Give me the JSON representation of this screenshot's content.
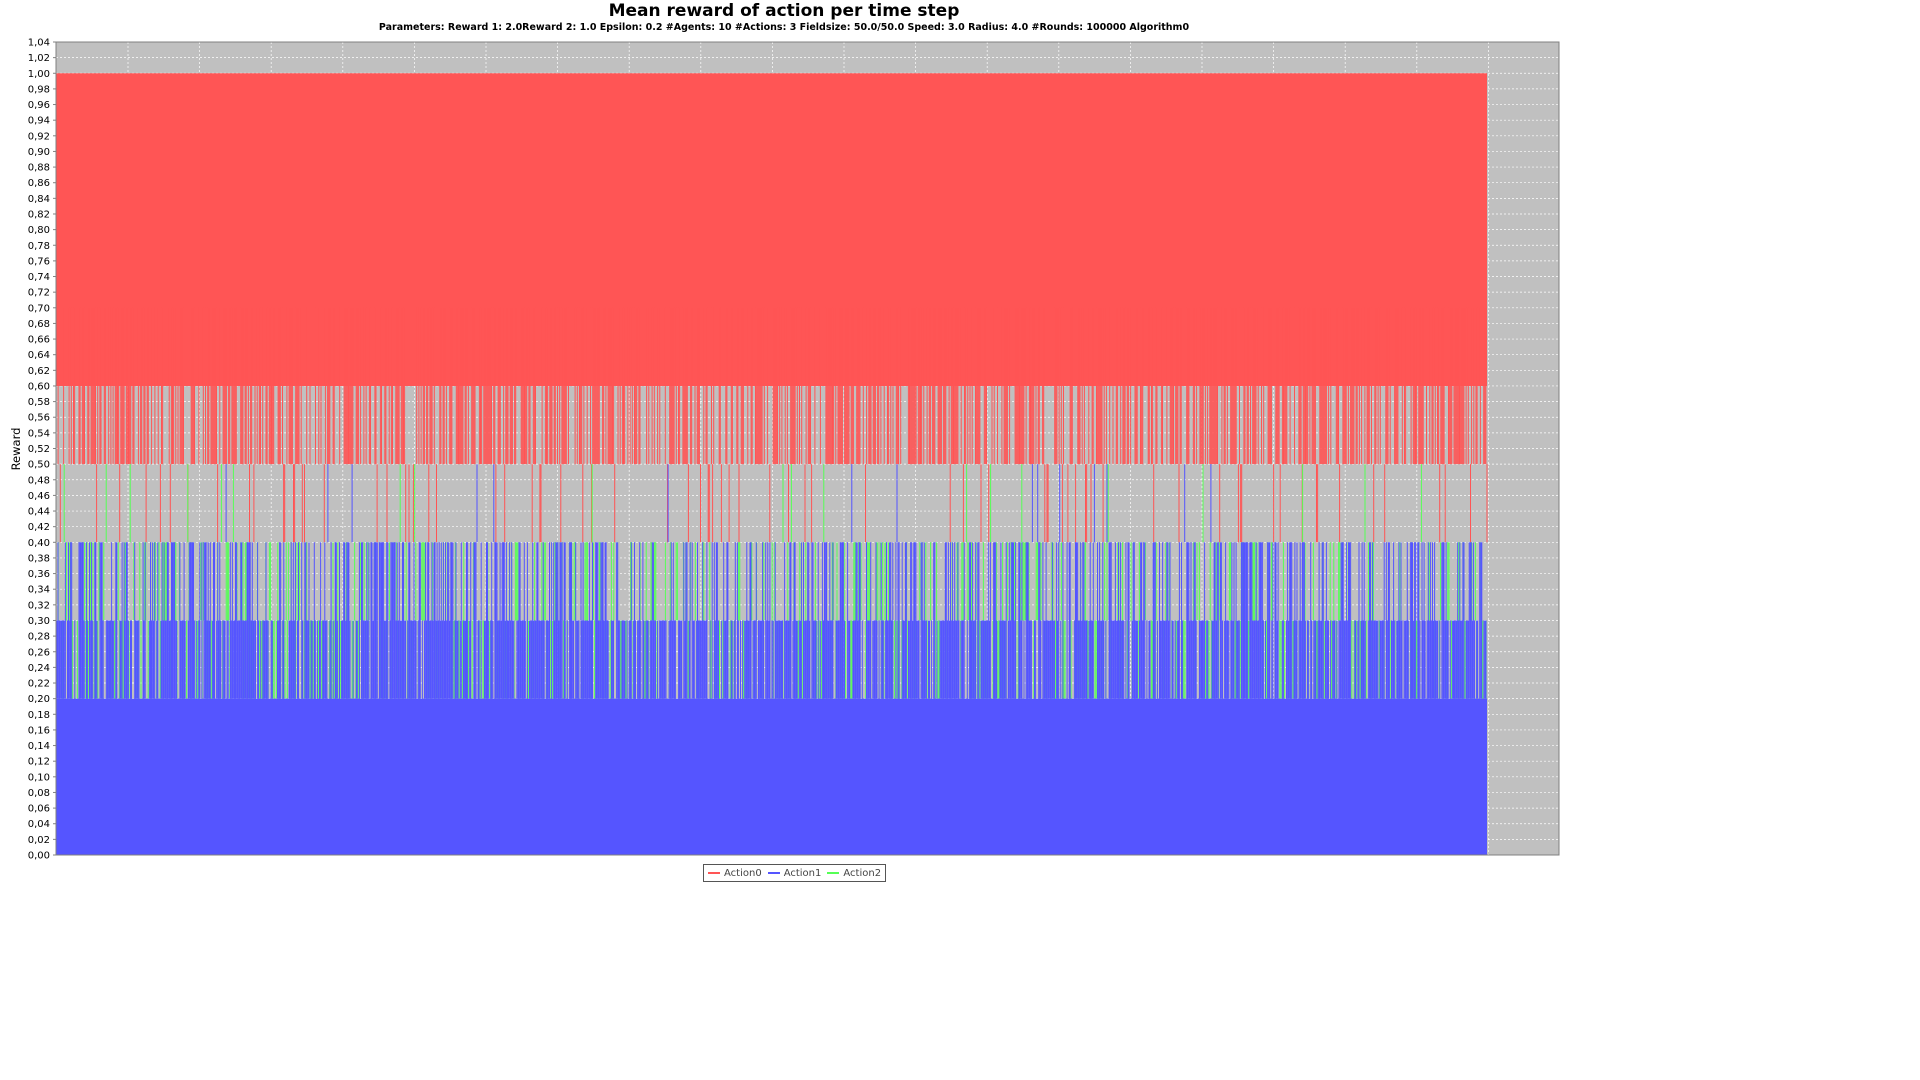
{
  "chart_data": {
    "type": "line",
    "title": "Mean reward of action per time step",
    "subtitle": "Parameters: Reward 1: 2.0Reward 2: 1.0 Epsilon: 0.2 #Agents: 10 #Actions: 3 Fieldsize: 50.0/50.0 Speed: 3.0 Radius: 4.0 #Rounds: 100000 Algorithm0",
    "xlabel": "",
    "ylabel": "Reward",
    "ylim": [
      0,
      1.04
    ],
    "y_tick_step": 0.02,
    "grid": true,
    "x_tick_labels_visible": false,
    "legend_position": "bottom-center",
    "series": [
      {
        "name": "Action0",
        "color": "#ff5555",
        "typical_range": [
          0.6,
          1.0
        ],
        "dips_to": [
          0.5,
          0.4
        ],
        "peaks_to": 0.7
      },
      {
        "name": "Action1",
        "color": "#5555ff",
        "typical_range": [
          0.0,
          0.2
        ],
        "peaks_to": [
          0.3,
          0.4,
          0.5
        ]
      },
      {
        "name": "Action2",
        "color": "#55ff55",
        "typical_range": [
          0.2,
          0.3
        ],
        "peaks_to": [
          0.4,
          0.5
        ]
      }
    ]
  },
  "y_tick_labels": [
    "0,00",
    "0,02",
    "0,04",
    "0,06",
    "0,08",
    "0,10",
    "0,12",
    "0,14",
    "0,16",
    "0,18",
    "0,20",
    "0,22",
    "0,24",
    "0,26",
    "0,28",
    "0,30",
    "0,32",
    "0,34",
    "0,36",
    "0,38",
    "0,40",
    "0,42",
    "0,44",
    "0,46",
    "0,48",
    "0,50",
    "0,52",
    "0,54",
    "0,56",
    "0,58",
    "0,60",
    "0,62",
    "0,64",
    "0,66",
    "0,68",
    "0,70",
    "0,72",
    "0,74",
    "0,76",
    "0,78",
    "0,80",
    "0,82",
    "0,84",
    "0,86",
    "0,88",
    "0,90",
    "0,92",
    "0,94",
    "0,96",
    "0,98",
    "1,00",
    "1,02",
    "1,04"
  ],
  "colors": {
    "plot_background": "#c0c0c0",
    "gridline": "#ffffff"
  }
}
